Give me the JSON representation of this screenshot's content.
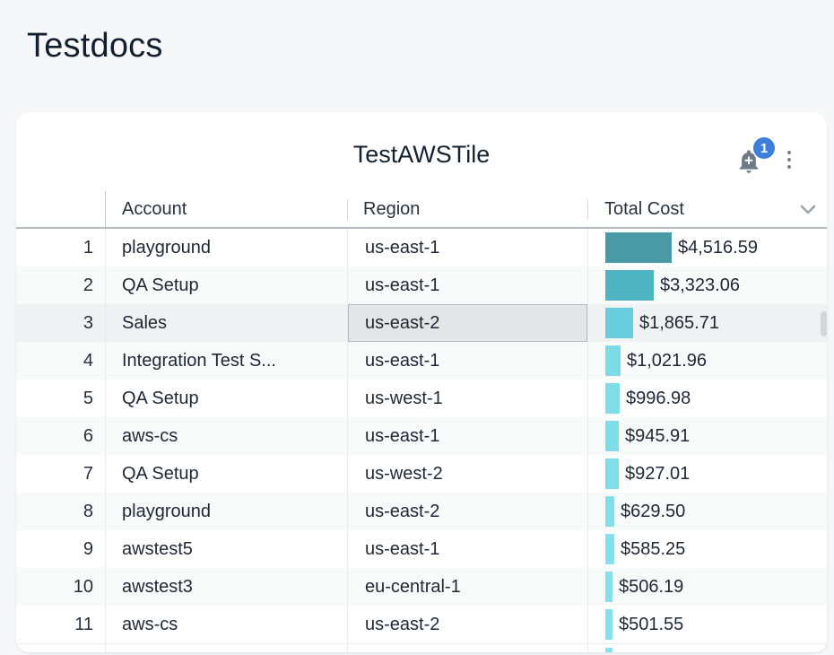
{
  "page": {
    "title": "Testdocs",
    "background_color": "#f6f7f9"
  },
  "tile": {
    "title": "TestAWSTile",
    "notification_count": "1",
    "badge_color": "#3d7fd9",
    "bell_icon_color": "#6e7a88",
    "kebab_icon_color": "#79828e"
  },
  "table": {
    "columns": [
      "Account",
      "Region",
      "Total Cost"
    ],
    "sort_indicator_column": "Total Cost",
    "selected_cell": {
      "row_index": 2,
      "column": "region"
    },
    "rows": [
      {
        "rank": "1",
        "account": "playground",
        "region": "us-east-1",
        "cost_label": "$4,516.59",
        "value": 4516.59,
        "bar_color": "#4a9aa6"
      },
      {
        "rank": "2",
        "account": "QA Setup",
        "region": "us-east-1",
        "cost_label": "$3,323.06",
        "value": 3323.06,
        "bar_color": "#4fb4c2"
      },
      {
        "rank": "3",
        "account": "Sales",
        "region": "us-east-2",
        "cost_label": "$1,865.71",
        "value": 1865.71,
        "bar_color": "#67cddd"
      },
      {
        "rank": "4",
        "account": "Integration Test S...",
        "region": "us-east-1",
        "cost_label": "$1,021.96",
        "value": 1021.96,
        "bar_color": "#7cdbe7"
      },
      {
        "rank": "5",
        "account": "QA Setup",
        "region": "us-west-1",
        "cost_label": "$996.98",
        "value": 996.98,
        "bar_color": "#7edce8"
      },
      {
        "rank": "6",
        "account": "aws-cs",
        "region": "us-east-1",
        "cost_label": "$945.91",
        "value": 945.91,
        "bar_color": "#7fdde9"
      },
      {
        "rank": "7",
        "account": "QA Setup",
        "region": "us-west-2",
        "cost_label": "$927.01",
        "value": 927.01,
        "bar_color": "#80dde9"
      },
      {
        "rank": "8",
        "account": "playground",
        "region": "us-east-2",
        "cost_label": "$629.50",
        "value": 629.5,
        "bar_color": "#83dfea"
      },
      {
        "rank": "9",
        "account": "awstest5",
        "region": "us-east-1",
        "cost_label": "$585.25",
        "value": 585.25,
        "bar_color": "#84e0eb"
      },
      {
        "rank": "10",
        "account": "awstest3",
        "region": "eu-central-1",
        "cost_label": "$506.19",
        "value": 506.19,
        "bar_color": "#85e0eb"
      },
      {
        "rank": "11",
        "account": "aws-cs",
        "region": "us-east-2",
        "cost_label": "$501.55",
        "value": 501.55,
        "bar_color": "#85e1eb"
      }
    ],
    "partial_row": {
      "bar_color": "#87e2ec"
    }
  }
}
